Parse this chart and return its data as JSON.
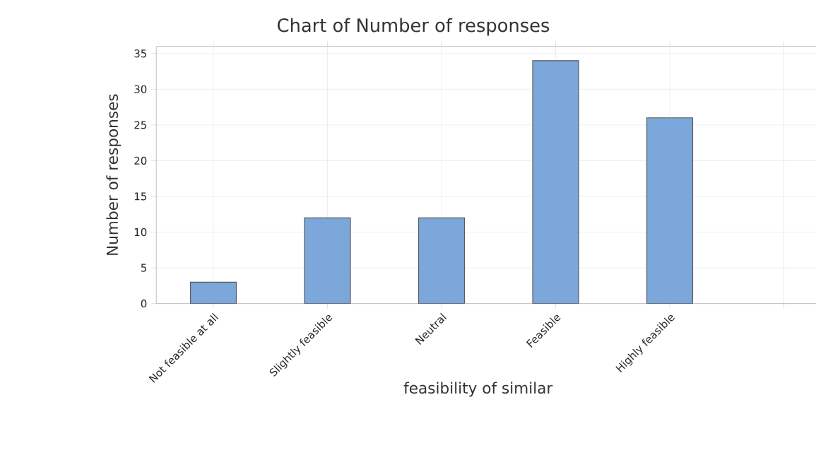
{
  "chart_data": {
    "type": "bar",
    "title": "Chart of Number of responses",
    "xlabel": "feasibility of similar",
    "ylabel": "Number of responses",
    "categories": [
      "Not feasible at all",
      "Slightly feasible",
      "Neutral",
      "Feasible",
      "Highly feasible",
      null
    ],
    "values": [
      3,
      12,
      12,
      34,
      26,
      null
    ],
    "color": "#7ba7da",
    "ylim": [
      0,
      36
    ],
    "yticks": [
      0,
      5,
      10,
      15,
      20,
      25,
      30,
      35
    ],
    "grid": true
  }
}
